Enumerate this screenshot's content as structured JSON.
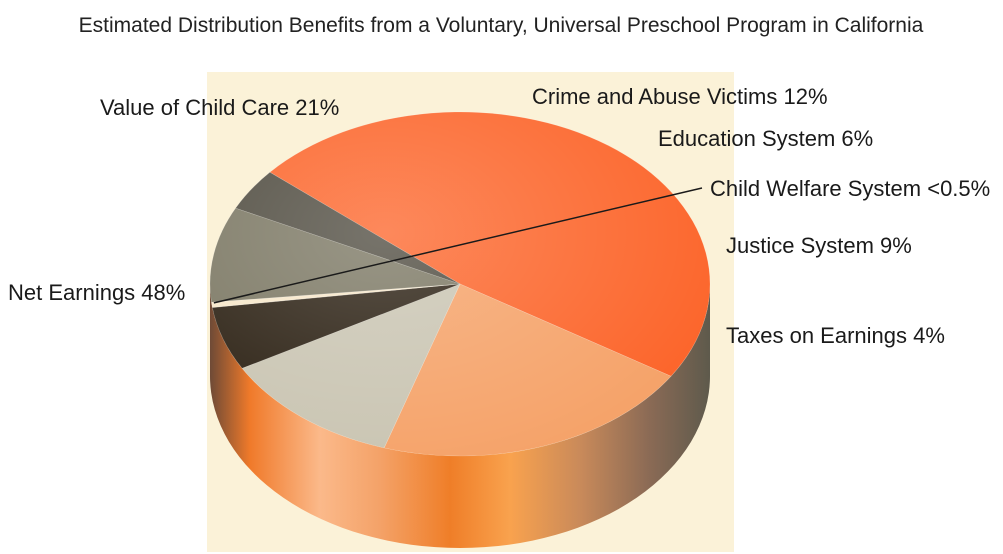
{
  "chart_data": {
    "type": "pie",
    "title": "Estimated Distribution Benefits from a Voluntary, Universal Preschool Program in California",
    "slices": [
      {
        "label": "Net Earnings",
        "display_value": "48%",
        "value": 48,
        "color": "#fc6125"
      },
      {
        "label": "Value of Child Care",
        "display_value": "21%",
        "value": 21,
        "color": "#f5a065"
      },
      {
        "label": "Crime and Abuse Victims",
        "display_value": "12%",
        "value": 12,
        "color": "#c8c3b0"
      },
      {
        "label": "Education System",
        "display_value": "6%",
        "value": 6,
        "color": "#251a0c"
      },
      {
        "label": "Child Welfare System",
        "display_value": "<0.5%",
        "value": 0.5,
        "color": "#f6e6c8"
      },
      {
        "label": "Justice System",
        "display_value": "9%",
        "value": 9,
        "color": "#77735e"
      },
      {
        "label": "Taxes on Earnings",
        "display_value": "4%",
        "value": 4,
        "color": "#4a463a"
      }
    ],
    "legend": "none (labels beside slices)",
    "style": "3d-cylinder"
  },
  "colors": {
    "background_panel": "#fbf2d8",
    "side_dark": "#6e5a4a",
    "side_light": "#fbb98a"
  }
}
